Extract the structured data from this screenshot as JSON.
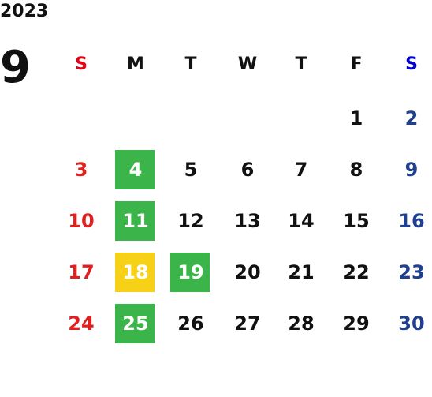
{
  "year": "2023",
  "month": "9",
  "weekdays": [
    {
      "label": "S",
      "color": "#e60012"
    },
    {
      "label": "M",
      "color": "#111111"
    },
    {
      "label": "T",
      "color": "#111111"
    },
    {
      "label": "W",
      "color": "#111111"
    },
    {
      "label": "T",
      "color": "#111111"
    },
    {
      "label": "F",
      "color": "#111111"
    },
    {
      "label": "S",
      "color": "#0000cc"
    }
  ],
  "day_colors": [
    "#e0201f",
    "#111111",
    "#111111",
    "#111111",
    "#111111",
    "#111111",
    "#1f3f8f"
  ],
  "weeks": [
    [
      null,
      null,
      null,
      null,
      null,
      {
        "day": "1"
      },
      {
        "day": "2"
      }
    ],
    [
      {
        "day": "3"
      },
      {
        "day": "4",
        "fill": "#3bb54a"
      },
      {
        "day": "5"
      },
      {
        "day": "6"
      },
      {
        "day": "7"
      },
      {
        "day": "8"
      },
      {
        "day": "9"
      }
    ],
    [
      {
        "day": "10"
      },
      {
        "day": "11",
        "fill": "#3bb54a"
      },
      {
        "day": "12"
      },
      {
        "day": "13"
      },
      {
        "day": "14"
      },
      {
        "day": "15"
      },
      {
        "day": "16"
      }
    ],
    [
      {
        "day": "17"
      },
      {
        "day": "18",
        "fill": "#f7d117"
      },
      {
        "day": "19",
        "fill": "#3bb54a"
      },
      {
        "day": "20"
      },
      {
        "day": "21"
      },
      {
        "day": "22"
      },
      {
        "day": "23"
      }
    ],
    [
      {
        "day": "24"
      },
      {
        "day": "25",
        "fill": "#3bb54a"
      },
      {
        "day": "26"
      },
      {
        "day": "27"
      },
      {
        "day": "28"
      },
      {
        "day": "29"
      },
      {
        "day": "30"
      }
    ]
  ]
}
